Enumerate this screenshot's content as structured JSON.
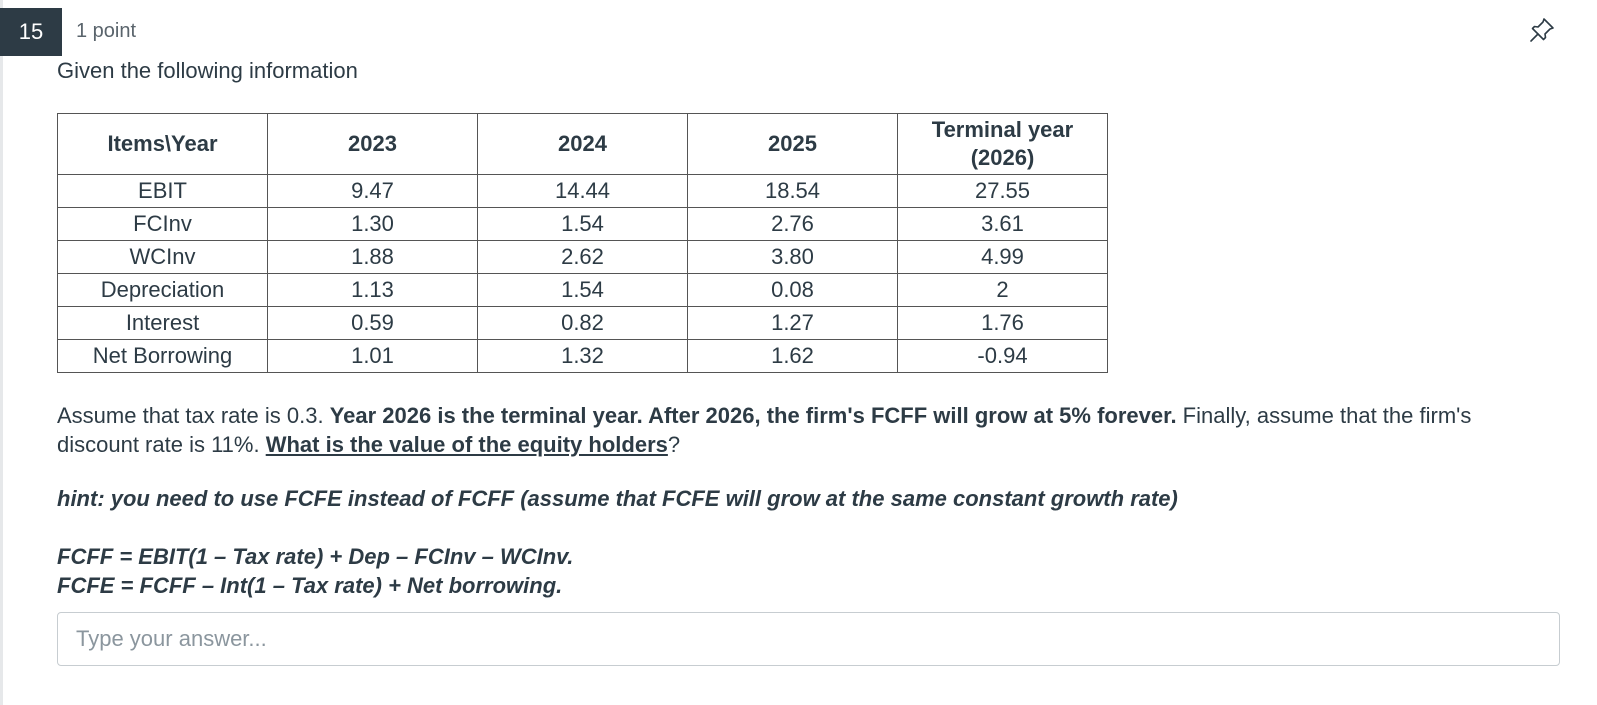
{
  "question": {
    "number": "15",
    "points": "1 point",
    "intro": "Given the following information"
  },
  "table": {
    "header": [
      "Items\\Year",
      "2023",
      "2024",
      "2025",
      "Terminal year (2026)"
    ],
    "rows": [
      {
        "label": "EBIT",
        "values": [
          "9.47",
          "14.44",
          "18.54",
          "27.55"
        ]
      },
      {
        "label": "FCInv",
        "values": [
          "1.30",
          "1.54",
          "2.76",
          "3.61"
        ]
      },
      {
        "label": "WCInv",
        "values": [
          "1.88",
          "2.62",
          "3.80",
          "4.99"
        ]
      },
      {
        "label": "Depreciation",
        "values": [
          "1.13",
          "1.54",
          "0.08",
          "2"
        ]
      },
      {
        "label": "Interest",
        "values": [
          "0.59",
          "0.82",
          "1.27",
          "1.76"
        ]
      },
      {
        "label": "Net Borrowing",
        "values": [
          "1.01",
          "1.32",
          "1.62",
          "-0.94"
        ]
      }
    ]
  },
  "paragraph": {
    "part1": "Assume that tax rate is 0.3. ",
    "part2_bold": "Year 2026 is the terminal year. After 2026, the firm's FCFF will grow at 5% forever.",
    "part3": " Finally, assume that the firm's discount rate is 11%. ",
    "part4_underline": "What is the value of the equity holders",
    "part5": "?"
  },
  "hint": "hint: you need to use FCFE instead of FCFF (assume that FCFE will grow at the same constant growth rate)",
  "formulas": {
    "fcff": "FCFF = EBIT(1 – Tax rate) + Dep – FCInv – WCInv.",
    "fcfe": "FCFE = FCFF – Int(1 – Tax rate) + Net borrowing."
  },
  "answer": {
    "placeholder": "Type your answer...",
    "value": ""
  },
  "icons": {
    "pin": "pin-icon"
  }
}
